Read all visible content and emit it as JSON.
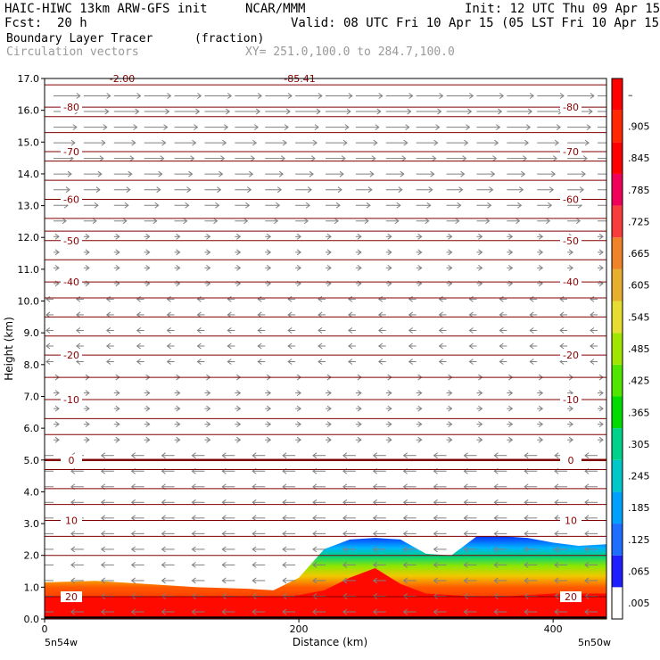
{
  "header": {
    "title": "HAIC-HIWC 13km ARW-GFS init",
    "org": "NCAR/MMM",
    "init": "Init: 12 UTC Thu 09 Apr 15",
    "fcst_label": "Fcst:",
    "fcst_value": "20 h",
    "valid": "Valid: 08 UTC Fri 10 Apr 15 (05 LST Fri 10 Apr 15)",
    "field_name": "Boundary Layer Tracer",
    "field_units": "(fraction)",
    "vector_label": "Circulation vectors",
    "xy_label": "XY= 251.0,100.0 to 284.7,100.0"
  },
  "chart_data": {
    "type": "heatmap",
    "ylabel": "Height (km)",
    "xlabel": "Distance (km)",
    "ylim": [
      0,
      17
    ],
    "xlim": [
      0,
      442
    ],
    "y_ticks": [
      "0.0",
      "1.0",
      "2.0",
      "3.0",
      "4.0",
      "5.0",
      "6.0",
      "7.0",
      "8.0",
      "9.0",
      "10.0",
      "11.0",
      "12.0",
      "13.0",
      "14.0",
      "15.0",
      "16.0",
      "17.0"
    ],
    "x_ticks": [
      "0",
      "200",
      "400"
    ],
    "x_endpoints": [
      "5n54w",
      "5n50w"
    ],
    "colorbar": {
      "labels": [
        ".005",
        ".065",
        ".125",
        ".185",
        ".245",
        ".305",
        ".365",
        ".425",
        ".485",
        ".545",
        ".605",
        ".665",
        ".725",
        ".785",
        ".845",
        ".905",
        "–"
      ],
      "colors": [
        "#ffffff",
        "#1e1eff",
        "#1e6eff",
        "#00a0ff",
        "#00c8c8",
        "#00d28c",
        "#00dc00",
        "#50e600",
        "#a0e600",
        "#e6dc32",
        "#e6af2d",
        "#f08228",
        "#fa3c3c",
        "#f0005a",
        "#ff0000",
        "#ff2800",
        "#ff0000"
      ]
    },
    "temperature_contours": [
      {
        "label": "-80",
        "height_km": 16.1
      },
      {
        "label": "-70",
        "height_km": 14.7
      },
      {
        "label": "-60",
        "height_km": 13.2
      },
      {
        "label": "-50",
        "height_km": 11.9
      },
      {
        "label": "-40",
        "height_km": 10.6
      },
      {
        "label": "-20",
        "height_km": 8.3
      },
      {
        "label": "-10",
        "height_km": 6.9
      },
      {
        "label": "0",
        "height_km": 5.0
      },
      {
        "label": "10",
        "height_km": 3.1
      },
      {
        "label": "20",
        "height_km": 0.7
      }
    ],
    "unlabeled_contours_km": [
      16.8,
      15.8,
      15.3,
      14.4,
      13.8,
      12.6,
      12.2,
      11.3,
      10.1,
      9.5,
      8.9,
      7.6,
      6.3,
      5.8,
      4.7,
      4.1,
      3.6,
      2.6,
      2.0
    ],
    "top_labels": [
      "-2.00",
      "-85.41"
    ],
    "tracer_profile": {
      "x_km": [
        0,
        40,
        80,
        120,
        160,
        180,
        200,
        220,
        240,
        260,
        280,
        300,
        320,
        340,
        360,
        380,
        400,
        420,
        442
      ],
      "top_km": [
        1.15,
        1.2,
        1.1,
        1.0,
        0.95,
        0.9,
        1.3,
        2.2,
        2.5,
        2.55,
        2.5,
        2.05,
        2.0,
        2.6,
        2.6,
        2.55,
        2.4,
        2.3,
        2.35
      ],
      "red_top_km": [
        0.7,
        0.7,
        0.7,
        0.7,
        0.7,
        0.7,
        0.75,
        0.9,
        1.3,
        1.6,
        1.1,
        0.8,
        0.75,
        0.7,
        0.7,
        0.75,
        0.8,
        0.8,
        0.8
      ]
    }
  }
}
